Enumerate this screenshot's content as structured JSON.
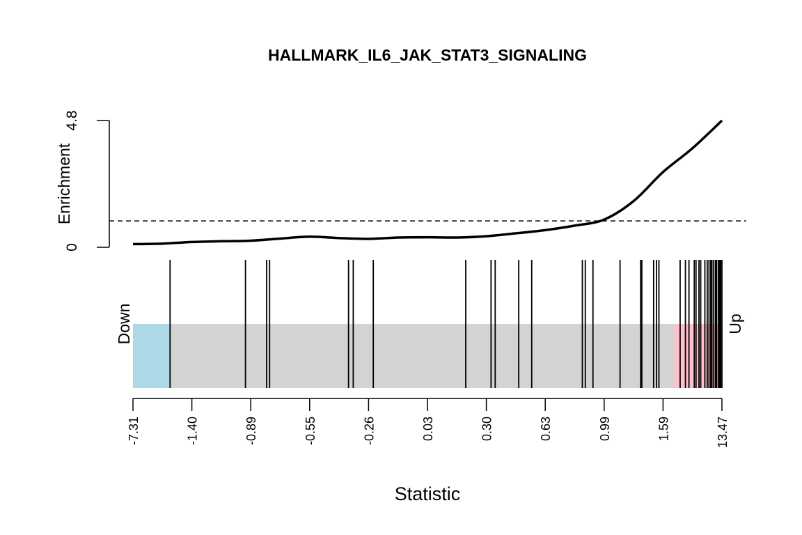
{
  "chart_data": {
    "type": "barcode",
    "title": "HALLMARK_IL6_JAK_STAT3_SIGNALING",
    "xlabel": "Statistic",
    "ylabel": "Enrichment",
    "y_ticks": [
      "0",
      "4.8"
    ],
    "ylim": [
      0,
      4.8
    ],
    "reference_line": 1.0,
    "x_tick_labels": [
      "-7.31",
      "-1.40",
      "-0.89",
      "-0.55",
      "-0.26",
      "0.03",
      "0.30",
      "0.63",
      "0.99",
      "1.59",
      "13.47"
    ],
    "down_label": "Down",
    "up_label": "Up",
    "colors": {
      "down_region": "#add8e6",
      "middle_region": "#d3d3d3",
      "up_region": "#ffc0cb",
      "line": "#000000"
    },
    "down_region_end_rank": 0.062,
    "up_region_start_rank": 0.919,
    "gene_ranks": [
      0.063,
      0.191,
      0.227,
      0.232,
      0.366,
      0.374,
      0.408,
      0.565,
      0.608,
      0.615,
      0.655,
      0.677,
      0.763,
      0.768,
      0.781,
      0.827,
      0.862,
      0.864,
      0.884,
      0.889,
      0.893,
      0.929,
      0.938,
      0.944,
      0.953,
      0.956,
      0.961,
      0.964,
      0.971,
      0.975,
      0.978,
      0.981,
      0.983,
      0.986,
      0.989,
      0.991,
      0.994,
      0.996,
      0.998,
      1.0
    ],
    "enrichment_curve": {
      "rank": [
        0.0,
        0.05,
        0.1,
        0.15,
        0.2,
        0.25,
        0.3,
        0.35,
        0.4,
        0.45,
        0.5,
        0.55,
        0.6,
        0.65,
        0.7,
        0.75,
        0.8,
        0.85,
        0.9,
        0.95,
        1.0
      ],
      "value": [
        0.12,
        0.14,
        0.2,
        0.23,
        0.25,
        0.33,
        0.4,
        0.35,
        0.32,
        0.37,
        0.38,
        0.37,
        0.42,
        0.53,
        0.65,
        0.82,
        1.05,
        1.75,
        2.85,
        3.75,
        4.8
      ]
    }
  }
}
